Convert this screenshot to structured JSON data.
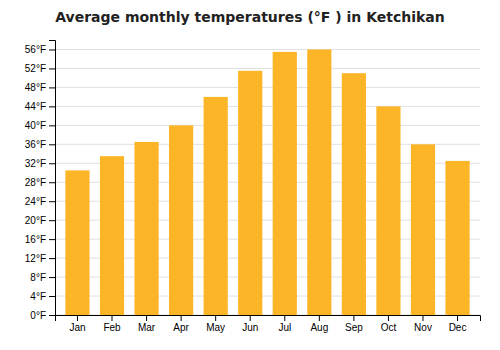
{
  "chart_data": {
    "type": "bar",
    "title": "Average monthly temperatures (°F ) in Ketchikan",
    "categories": [
      "Jan",
      "Feb",
      "Mar",
      "Apr",
      "May",
      "Jun",
      "Jul",
      "Aug",
      "Sep",
      "Oct",
      "Nov",
      "Dec"
    ],
    "values": [
      30.5,
      33.5,
      36.5,
      40.0,
      46.0,
      51.5,
      55.5,
      56.0,
      51.0,
      44.0,
      36.0,
      32.5
    ],
    "color": "#FDB528",
    "ylim": [
      0,
      58
    ],
    "yticks": [
      {
        "value": 0,
        "label": "0°F"
      },
      {
        "value": 4,
        "label": "4°F"
      },
      {
        "value": 8,
        "label": "8°F"
      },
      {
        "value": 12,
        "label": "12°F"
      },
      {
        "value": 16,
        "label": "16°F"
      },
      {
        "value": 20,
        "label": "20°F"
      },
      {
        "value": 24,
        "label": "24°F"
      },
      {
        "value": 28,
        "label": "28°F"
      },
      {
        "value": 32,
        "label": "32°F"
      },
      {
        "value": 36,
        "label": "36°F"
      },
      {
        "value": 40,
        "label": "40°F"
      },
      {
        "value": 44,
        "label": "44°F"
      },
      {
        "value": 48,
        "label": "48°F"
      },
      {
        "value": 52,
        "label": "52°F"
      },
      {
        "value": 56,
        "label": "56°F"
      }
    ],
    "grid": true
  }
}
